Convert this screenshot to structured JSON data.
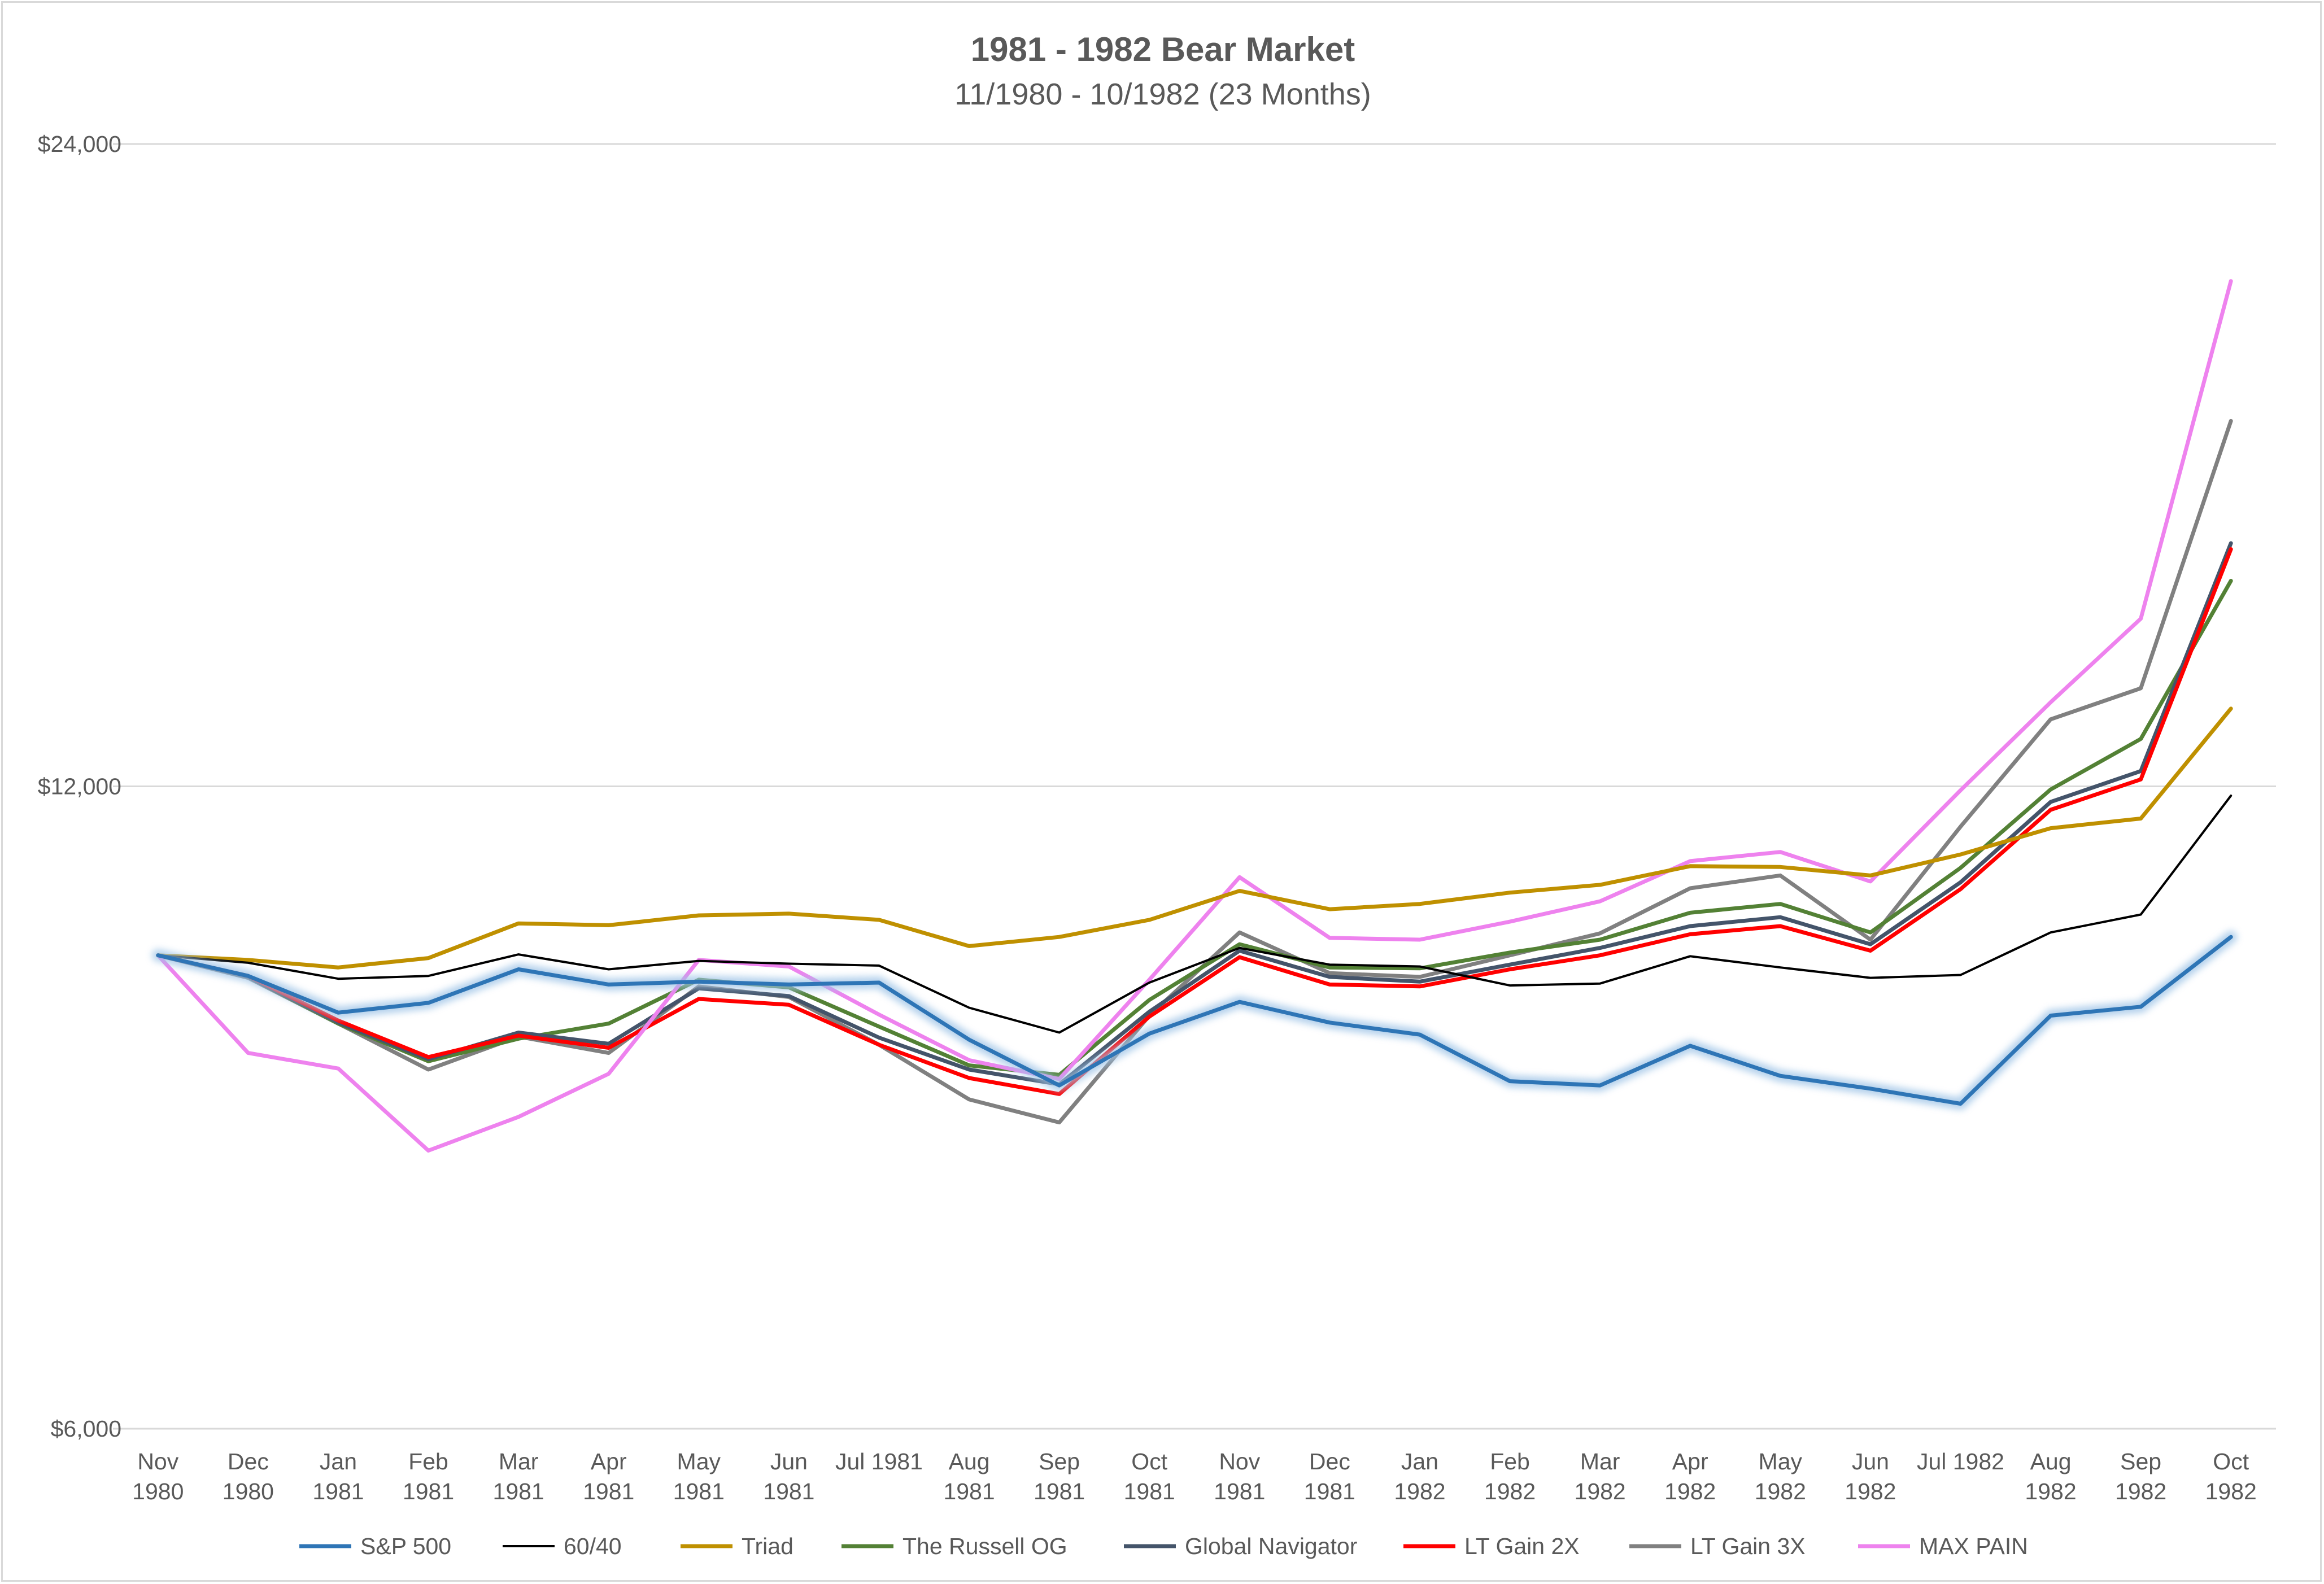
{
  "chart_data": {
    "type": "line",
    "title": "1981 - 1982 Bear Market",
    "subtitle": "11/1980 - 10/1982 (23 Months)",
    "xlabel": "",
    "ylabel": "",
    "y_scale": "log",
    "ylim": [
      6000,
      24000
    ],
    "y_ticks": [
      6000,
      12000,
      24000
    ],
    "y_tick_labels": [
      "$6,000",
      "$12,000",
      "$24,000"
    ],
    "grid": true,
    "legend_position": "bottom",
    "categories": [
      [
        "Nov",
        "1980"
      ],
      [
        "Dec",
        "1980"
      ],
      [
        "Jan",
        "1981"
      ],
      [
        "Feb",
        "1981"
      ],
      [
        "Mar",
        "1981"
      ],
      [
        "Apr",
        "1981"
      ],
      [
        "May",
        "1981"
      ],
      [
        "Jun",
        "1981"
      ],
      [
        "Jul 1981",
        ""
      ],
      [
        "Aug",
        "1981"
      ],
      [
        "Sep",
        "1981"
      ],
      [
        "Oct",
        "1981"
      ],
      [
        "Nov",
        "1981"
      ],
      [
        "Dec",
        "1981"
      ],
      [
        "Jan",
        "1982"
      ],
      [
        "Feb",
        "1982"
      ],
      [
        "Mar",
        "1982"
      ],
      [
        "Apr",
        "1982"
      ],
      [
        "May",
        "1982"
      ],
      [
        "Jun",
        "1982"
      ],
      [
        "Jul 1982",
        ""
      ],
      [
        "Aug",
        "1982"
      ],
      [
        "Sep",
        "1982"
      ],
      [
        "Oct",
        "1982"
      ]
    ],
    "series": [
      {
        "name": "LT Gain 3X",
        "color": "#808080",
        "width": 7,
        "values": [
          10000,
          9760,
          9290,
          8840,
          9160,
          9000,
          9670,
          9560,
          9080,
          8560,
          8350,
          9370,
          10250,
          9810,
          9770,
          10000,
          10240,
          10750,
          10900,
          10170,
          11490,
          12900,
          13340,
          17800
        ]
      },
      {
        "name": "The Russell OG",
        "color": "#538135",
        "width": 7,
        "values": [
          10000,
          9770,
          9290,
          8920,
          9140,
          9290,
          9740,
          9660,
          9260,
          8880,
          8790,
          9530,
          10120,
          9870,
          9860,
          10030,
          10170,
          10470,
          10570,
          10250,
          10990,
          11960,
          12630,
          14980
        ]
      },
      {
        "name": "Global Navigator",
        "color": "#44546a",
        "width": 7,
        "values": [
          10000,
          9770,
          9300,
          8940,
          9200,
          9090,
          9650,
          9570,
          9150,
          8840,
          8700,
          9410,
          10050,
          9770,
          9720,
          9900,
          10080,
          10320,
          10420,
          10120,
          10820,
          11800,
          12200,
          15600
        ]
      },
      {
        "name": "LT Gain 2X",
        "color": "#ff0000",
        "width": 7,
        "values": [
          10000,
          9780,
          9320,
          8960,
          9170,
          9050,
          9540,
          9480,
          9080,
          8760,
          8610,
          9360,
          9980,
          9690,
          9670,
          9850,
          10000,
          10230,
          10320,
          10050,
          10740,
          11700,
          12090,
          15500
        ]
      },
      {
        "name": "MAX PAIN",
        "color": "#ee82ee",
        "width": 7,
        "values": [
          10000,
          9000,
          8850,
          8100,
          8400,
          8800,
          9950,
          9880,
          9380,
          8930,
          8750,
          9740,
          10880,
          10190,
          10170,
          10370,
          10600,
          11070,
          11180,
          10830,
          11950,
          13140,
          14380,
          20700
        ]
      },
      {
        "name": "Triad",
        "color": "#bf9000",
        "width": 7,
        "values": [
          10000,
          9950,
          9870,
          9970,
          10350,
          10330,
          10440,
          10460,
          10390,
          10100,
          10200,
          10390,
          10720,
          10510,
          10570,
          10700,
          10790,
          11010,
          11000,
          10900,
          11150,
          11470,
          11590,
          13050
        ]
      },
      {
        "name": "60/40",
        "color": "#000000",
        "width": 4,
        "values": [
          10000,
          9920,
          9750,
          9780,
          10010,
          9850,
          9940,
          9910,
          9890,
          9450,
          9200,
          9710,
          10080,
          9900,
          9880,
          9680,
          9700,
          9990,
          9870,
          9760,
          9790,
          10250,
          10450,
          11880
        ]
      },
      {
        "name": "S&P 500",
        "color": "#2e75b6",
        "width": 7,
        "glow": true,
        "values": [
          10000,
          9780,
          9400,
          9500,
          9850,
          9690,
          9720,
          9690,
          9710,
          9130,
          8690,
          9190,
          9510,
          9300,
          9180,
          8730,
          8690,
          9070,
          8780,
          8660,
          8520,
          9370,
          9460,
          10200
        ]
      }
    ],
    "legend_order": [
      "S&P 500",
      "60/40",
      "Triad",
      "The Russell OG",
      "Global Navigator",
      "LT Gain 2X",
      "LT Gain 3X",
      "MAX PAIN"
    ]
  }
}
